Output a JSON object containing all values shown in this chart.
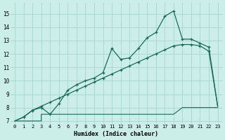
{
  "xlabel": "Humidex (Indice chaleur)",
  "bg_color": "#cceee8",
  "grid_color": "#aad8d0",
  "line_color": "#1a6b5a",
  "xlim": [
    -0.5,
    23.5
  ],
  "ylim": [
    6.8,
    15.8
  ],
  "yticks": [
    7,
    8,
    9,
    10,
    11,
    12,
    13,
    14,
    15
  ],
  "xticks": [
    0,
    1,
    2,
    3,
    4,
    5,
    6,
    7,
    8,
    9,
    10,
    11,
    12,
    13,
    14,
    15,
    16,
    17,
    18,
    19,
    20,
    21,
    22,
    23
  ],
  "series_min_x": [
    0,
    1,
    2,
    3,
    3,
    4,
    4,
    5,
    5,
    6,
    6,
    7,
    7,
    8,
    8,
    9,
    9,
    10,
    10,
    11,
    11,
    12,
    12,
    13,
    13,
    14,
    14,
    15,
    15,
    16,
    16,
    17,
    17,
    18,
    18,
    19,
    19,
    20,
    20,
    21,
    21,
    22,
    22,
    23
  ],
  "series_min_y": [
    7.0,
    7.0,
    7.0,
    7.0,
    7.5,
    7.5,
    7.5,
    7.5,
    7.5,
    7.5,
    7.5,
    7.5,
    7.5,
    7.5,
    7.5,
    7.5,
    7.5,
    7.5,
    7.5,
    7.5,
    7.5,
    7.5,
    7.5,
    7.5,
    7.5,
    7.5,
    7.5,
    7.5,
    7.5,
    7.5,
    7.5,
    7.5,
    7.5,
    7.5,
    7.5,
    8.0,
    8.0,
    8.0,
    8.0,
    8.0,
    8.0,
    8.0,
    8.0,
    8.0
  ],
  "series_mean_x": [
    0,
    1,
    2,
    3,
    4,
    5,
    6,
    7,
    8,
    9,
    10,
    11,
    12,
    13,
    14,
    15,
    16,
    17,
    18,
    19,
    20,
    21,
    22,
    23
  ],
  "series_mean_y": [
    7.0,
    7.3,
    7.8,
    8.1,
    8.4,
    8.7,
    9.0,
    9.3,
    9.6,
    9.9,
    10.2,
    10.5,
    10.8,
    11.1,
    11.4,
    11.7,
    12.0,
    12.3,
    12.6,
    12.7,
    12.7,
    12.6,
    12.2,
    8.1
  ],
  "series_max_x": [
    0,
    1,
    2,
    3,
    4,
    5,
    6,
    7,
    8,
    9,
    10,
    11,
    12,
    13,
    14,
    15,
    16,
    17,
    18,
    19,
    20,
    21,
    22,
    23
  ],
  "series_max_y": [
    7.0,
    7.3,
    7.8,
    8.0,
    7.5,
    8.3,
    9.3,
    9.7,
    10.0,
    10.2,
    10.6,
    12.4,
    11.6,
    11.7,
    12.4,
    13.2,
    13.6,
    14.8,
    15.2,
    13.1,
    13.1,
    12.8,
    12.5,
    8.1
  ],
  "marker_on": [
    1,
    2,
    3,
    4,
    5,
    6,
    7,
    8,
    9,
    10,
    11,
    12,
    13,
    14,
    15,
    16,
    17,
    18,
    19,
    20,
    21,
    22
  ]
}
